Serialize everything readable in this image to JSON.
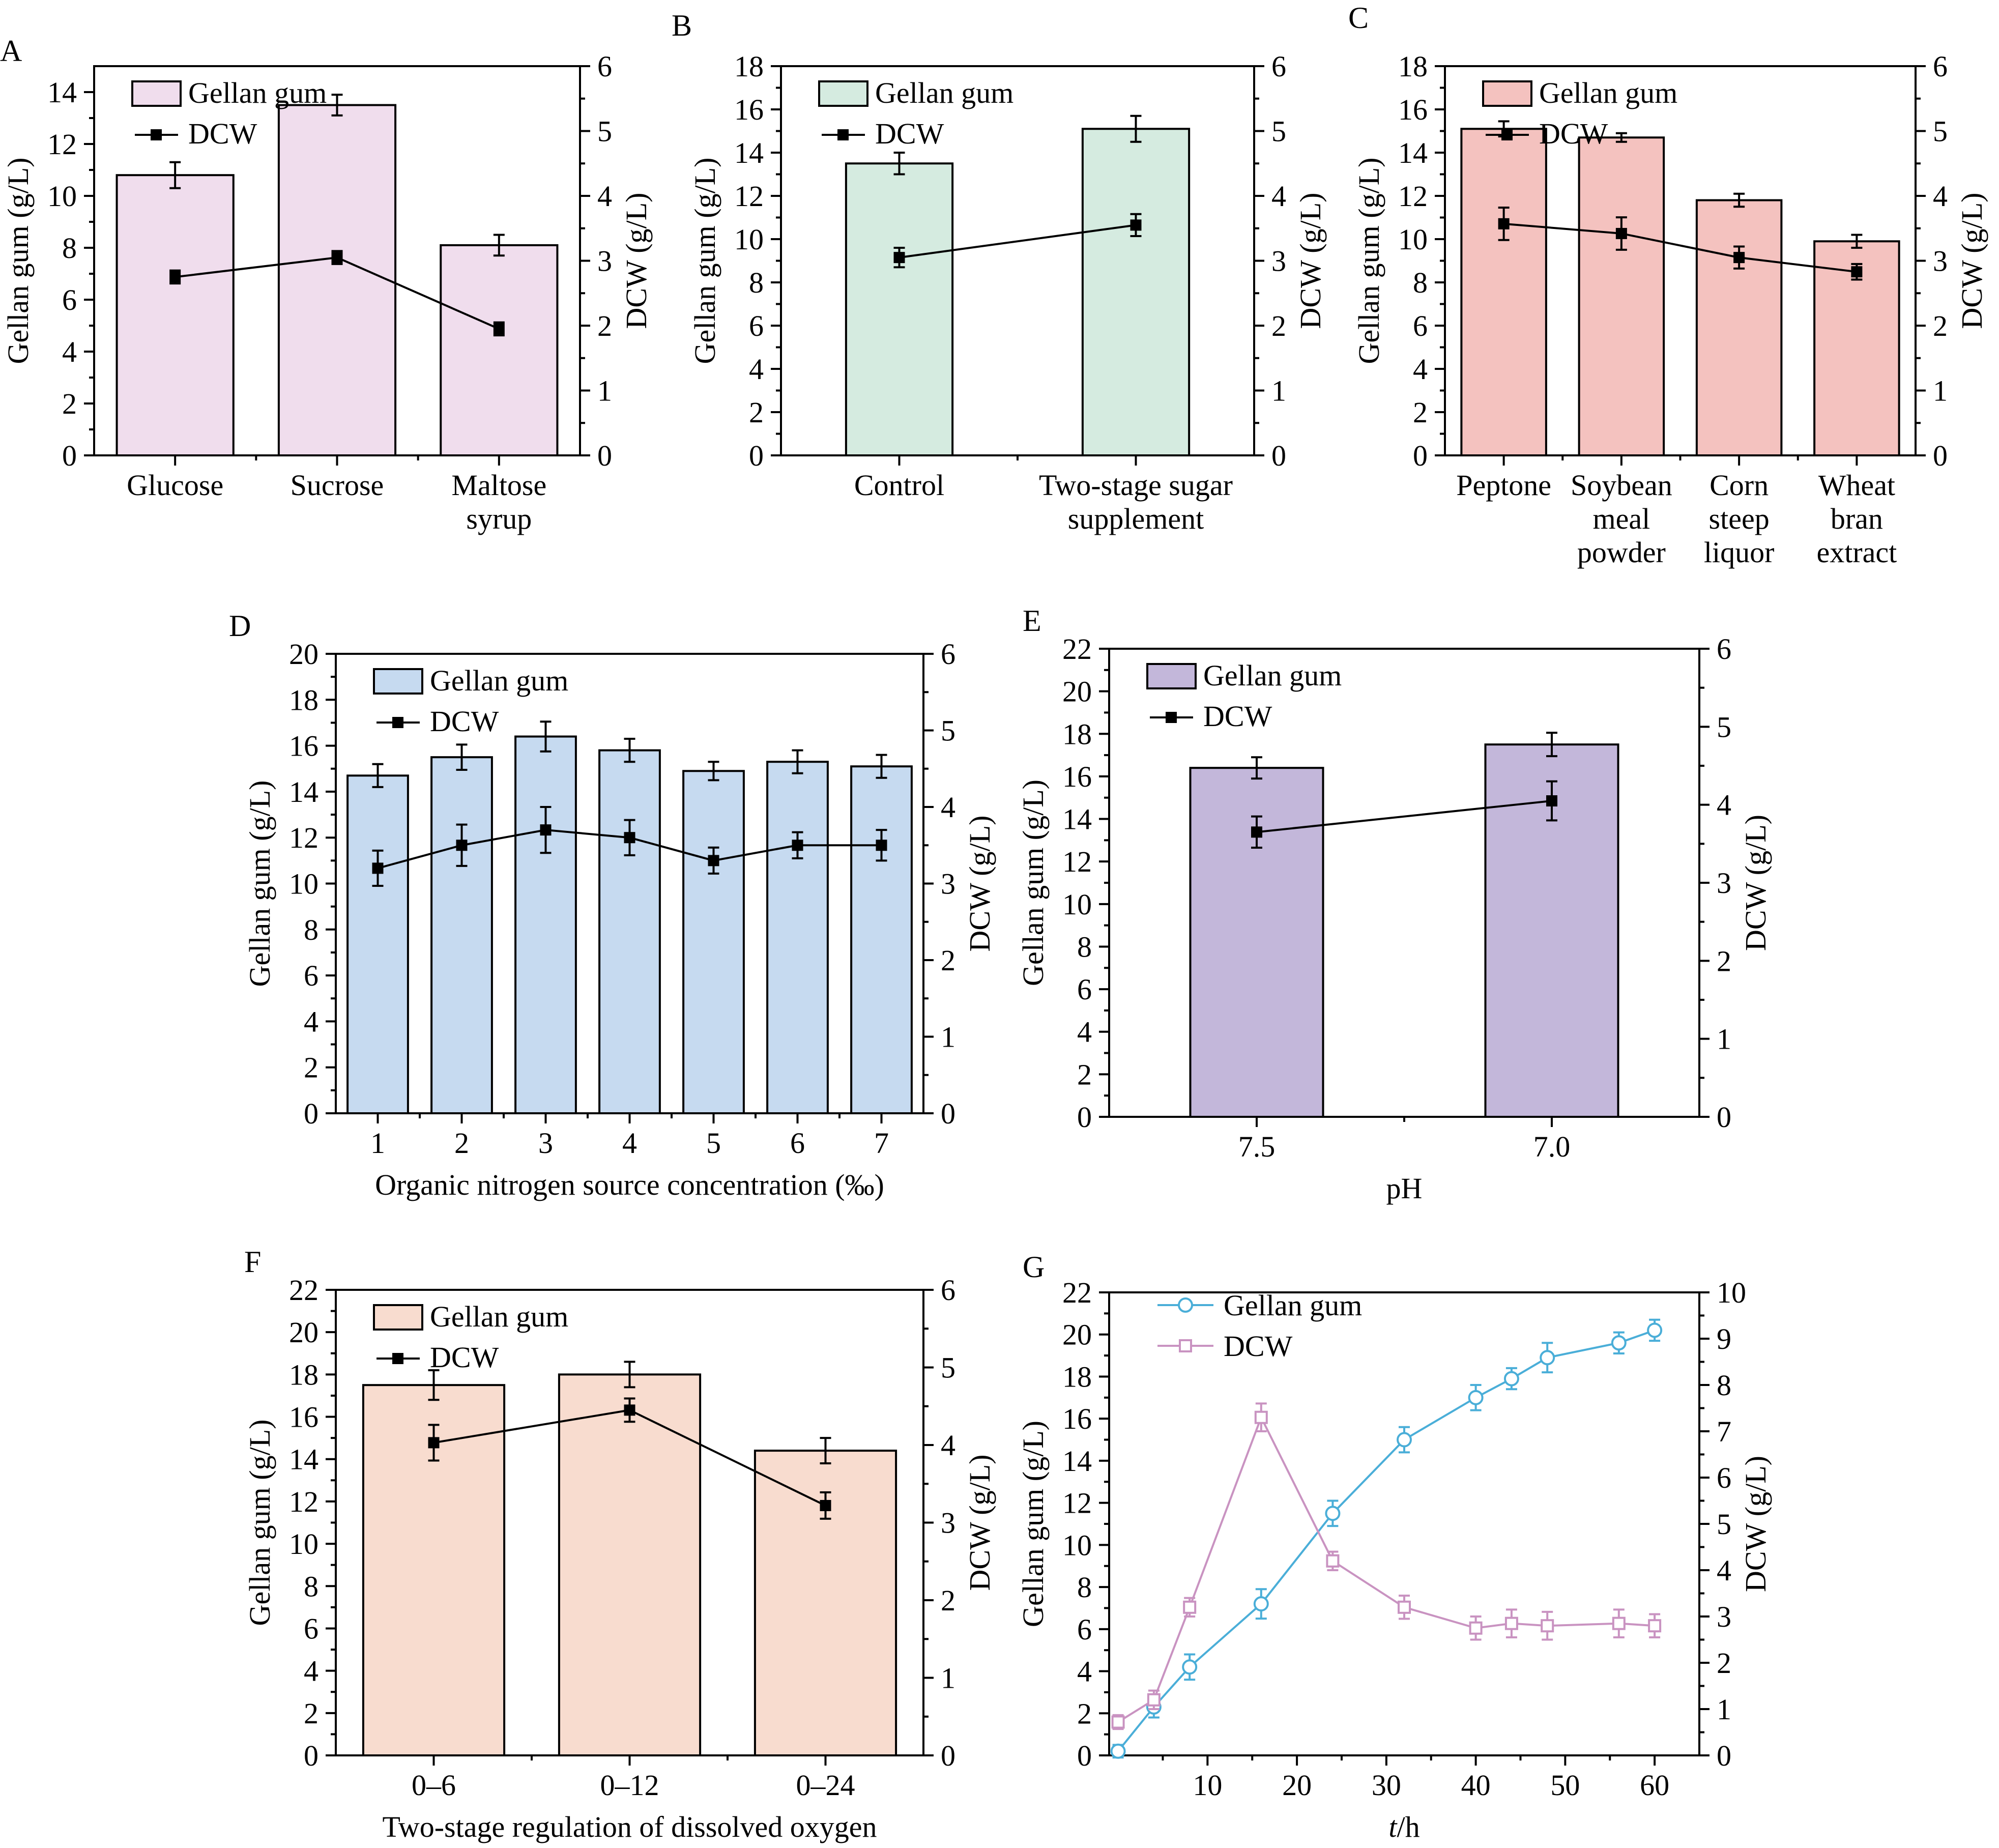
{
  "chart_data": [
    {
      "panel": "A",
      "type": "bar",
      "categories": [
        "Glucose",
        "Sucrose",
        "Maltose syrup"
      ],
      "series": [
        {
          "name": "Gellan gum",
          "kind": "bar",
          "axis": "left",
          "values": [
            10.8,
            13.5,
            8.1
          ],
          "errors": [
            0.5,
            0.4,
            0.4
          ],
          "color": "#f0dded"
        },
        {
          "name": "DCW",
          "kind": "line",
          "axis": "right",
          "values": [
            2.75,
            3.05,
            1.95
          ],
          "errors": [
            0.1,
            0.1,
            0.1
          ],
          "color": "#000000"
        }
      ],
      "ylabel": "Gellan gum (g/L)",
      "ylim": [
        0,
        15
      ],
      "yticks": [
        0,
        2,
        4,
        6,
        8,
        10,
        12,
        14
      ],
      "y2label": "DCW (g/L)",
      "y2lim": [
        0,
        6
      ],
      "y2ticks": [
        0,
        1,
        2,
        3,
        4,
        5,
        6
      ],
      "xlabel": "",
      "legend": "top-left",
      "grid": false
    },
    {
      "panel": "B",
      "type": "bar",
      "categories": [
        "Control",
        "Two-stage sugar supplement"
      ],
      "series": [
        {
          "name": "Gellan gum",
          "kind": "bar",
          "axis": "left",
          "values": [
            13.5,
            15.1
          ],
          "errors": [
            0.5,
            0.6
          ],
          "color": "#d5ebe0"
        },
        {
          "name": "DCW",
          "kind": "line",
          "axis": "right",
          "values": [
            3.05,
            3.55
          ],
          "errors": [
            0.15,
            0.17
          ],
          "color": "#000000"
        }
      ],
      "ylabel": "Gellan gum (g/L)",
      "ylim": [
        0,
        18
      ],
      "yticks": [
        0,
        2,
        4,
        6,
        8,
        10,
        12,
        14,
        16,
        18
      ],
      "y2label": "DCW (g/L)",
      "y2lim": [
        0,
        6
      ],
      "y2ticks": [
        0,
        1,
        2,
        3,
        4,
        5,
        6
      ],
      "xlabel": "",
      "legend": "top-left",
      "grid": false
    },
    {
      "panel": "C",
      "type": "bar",
      "categories": [
        "Peptone",
        "Soybean meal powder",
        "Corn steep liquor",
        "Wheat bran extract"
      ],
      "series": [
        {
          "name": "Gellan gum",
          "kind": "bar",
          "axis": "left",
          "values": [
            15.1,
            14.7,
            11.8,
            9.9
          ],
          "errors": [
            0.35,
            0.2,
            0.3,
            0.3
          ],
          "color": "#f4c2bf"
        },
        {
          "name": "DCW",
          "kind": "line",
          "axis": "right",
          "values": [
            3.57,
            3.42,
            3.05,
            2.83
          ],
          "errors": [
            0.25,
            0.25,
            0.17,
            0.12
          ],
          "color": "#000000"
        }
      ],
      "ylabel": "Gellan gum (g/L)",
      "ylim": [
        0,
        18
      ],
      "yticks": [
        0,
        2,
        4,
        6,
        8,
        10,
        12,
        14,
        16,
        18
      ],
      "y2label": "DCW (g/L)",
      "y2lim": [
        0,
        6
      ],
      "y2ticks": [
        0,
        1,
        2,
        3,
        4,
        5,
        6
      ],
      "xlabel": "",
      "legend": "top-left",
      "grid": false
    },
    {
      "panel": "D",
      "type": "bar",
      "categories": [
        "1",
        "2",
        "3",
        "4",
        "5",
        "6",
        "7"
      ],
      "series": [
        {
          "name": "Gellan gum",
          "kind": "bar",
          "axis": "left",
          "values": [
            14.7,
            15.5,
            16.4,
            15.8,
            14.9,
            15.3,
            15.1
          ],
          "errors": [
            0.5,
            0.55,
            0.65,
            0.5,
            0.4,
            0.5,
            0.5
          ],
          "color": "#c6daf0"
        },
        {
          "name": "DCW",
          "kind": "line",
          "axis": "right",
          "values": [
            3.2,
            3.5,
            3.7,
            3.6,
            3.3,
            3.5,
            3.5
          ],
          "errors": [
            0.23,
            0.27,
            0.3,
            0.23,
            0.17,
            0.17,
            0.2
          ],
          "color": "#000000"
        }
      ],
      "xlabel": "Organic nitrogen source concentration (‰)",
      "ylabel": "Gellan gum (g/L)",
      "ylim": [
        0,
        20
      ],
      "yticks": [
        0,
        2,
        4,
        6,
        8,
        10,
        12,
        14,
        16,
        18,
        20
      ],
      "y2label": "DCW (g/L)",
      "y2lim": [
        0,
        6
      ],
      "y2ticks": [
        0,
        1,
        2,
        3,
        4,
        5,
        6
      ],
      "legend": "top-left",
      "grid": false
    },
    {
      "panel": "E",
      "type": "bar",
      "categories": [
        "7.5",
        "7.0"
      ],
      "series": [
        {
          "name": "Gellan gum",
          "kind": "bar",
          "axis": "left",
          "values": [
            16.4,
            17.5
          ],
          "errors": [
            0.5,
            0.55
          ],
          "color": "#c3b7da"
        },
        {
          "name": "DCW",
          "kind": "line",
          "axis": "right",
          "values": [
            3.65,
            4.05
          ],
          "errors": [
            0.2,
            0.25
          ],
          "color": "#000000"
        }
      ],
      "xlabel": "pH",
      "ylabel": "Gellan gum (g/L)",
      "ylim": [
        0,
        22
      ],
      "yticks": [
        0,
        2,
        4,
        6,
        8,
        10,
        12,
        14,
        16,
        18,
        20,
        22
      ],
      "y2label": "DCW (g/L)",
      "y2lim": [
        0,
        6
      ],
      "y2ticks": [
        0,
        1,
        2,
        3,
        4,
        5,
        6
      ],
      "legend": "top-left",
      "grid": false
    },
    {
      "panel": "F",
      "type": "bar",
      "categories": [
        "0–6",
        "0–12",
        "0–24"
      ],
      "series": [
        {
          "name": "Gellan gum",
          "kind": "bar",
          "axis": "left",
          "values": [
            17.5,
            18.0,
            14.4
          ],
          "errors": [
            0.7,
            0.6,
            0.6
          ],
          "color": "#f8dccf"
        },
        {
          "name": "DCW",
          "kind": "line",
          "axis": "right",
          "values": [
            4.03,
            4.45,
            3.22
          ],
          "errors": [
            0.23,
            0.15,
            0.17
          ],
          "color": "#000000"
        }
      ],
      "xlabel": "Two-stage regulation of dissolved oxygen",
      "ylabel": "Gellan gum (g/L)",
      "ylim": [
        0,
        22
      ],
      "yticks": [
        0,
        2,
        4,
        6,
        8,
        10,
        12,
        14,
        16,
        18,
        20,
        22
      ],
      "y2label": "DCW (g/L)",
      "y2lim": [
        0,
        6
      ],
      "y2ticks": [
        0,
        1,
        2,
        3,
        4,
        5,
        6
      ],
      "legend": "top-left",
      "grid": false
    },
    {
      "panel": "G",
      "type": "line",
      "series": [
        {
          "name": "Gellan gum",
          "axis": "left",
          "marker": "circle",
          "color": "#4aaed8",
          "x": [
            0,
            4,
            8,
            16,
            24,
            32,
            40,
            44,
            48,
            56,
            60
          ],
          "y": [
            0.2,
            2.3,
            4.2,
            7.2,
            11.5,
            15.0,
            17.0,
            17.9,
            18.9,
            19.6,
            20.2
          ],
          "errors": [
            0.3,
            0.5,
            0.6,
            0.7,
            0.6,
            0.6,
            0.6,
            0.5,
            0.7,
            0.5,
            0.5
          ]
        },
        {
          "name": "DCW",
          "axis": "right",
          "marker": "square",
          "color": "#c993c1",
          "x": [
            0,
            4,
            8,
            16,
            24,
            32,
            40,
            44,
            48,
            56,
            60
          ],
          "y": [
            0.72,
            1.2,
            3.2,
            7.3,
            4.2,
            3.2,
            2.75,
            2.85,
            2.8,
            2.85,
            2.8
          ],
          "errors": [
            0.15,
            0.2,
            0.2,
            0.3,
            0.2,
            0.25,
            0.25,
            0.3,
            0.3,
            0.3,
            0.25
          ]
        }
      ],
      "xlabel": "t/h",
      "xlim": [
        -1,
        65
      ],
      "xticks": [
        10,
        20,
        30,
        40,
        50,
        60
      ],
      "ylabel": "Gellan gum (g/L)",
      "ylim": [
        0,
        22
      ],
      "yticks": [
        0,
        2,
        4,
        6,
        8,
        10,
        12,
        14,
        16,
        18,
        20,
        22
      ],
      "y2label": "DCW (g/L)",
      "y2lim": [
        0,
        10
      ],
      "y2ticks": [
        0,
        1,
        2,
        3,
        4,
        5,
        6,
        7,
        8,
        9,
        10
      ],
      "legend": "top-left",
      "grid": false
    }
  ]
}
